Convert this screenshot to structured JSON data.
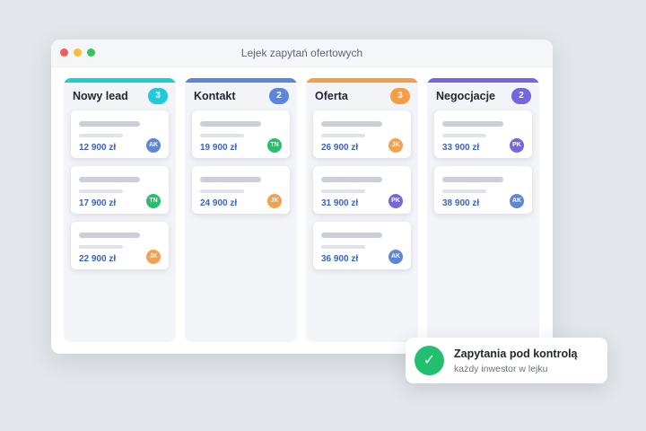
{
  "window": {
    "title": "Lejek zapytań ofertowych"
  },
  "colors": {
    "background": "#e3e7eb",
    "amount": "#3a63c4",
    "toast_check": "#22c06e"
  },
  "avatar_colors": {
    "AK": "#5b86d9",
    "TN": "#26bf6a",
    "JK": "#f5a04c",
    "PK": "#7667e0"
  },
  "columns": [
    {
      "title": "Nowy lead",
      "count": "3",
      "color": "#1fcbd9",
      "cards": [
        {
          "amount": "12 900 zł",
          "avatar": "AK"
        },
        {
          "amount": "17 900 zł",
          "avatar": "TN"
        },
        {
          "amount": "22 900 zł",
          "avatar": "JK"
        }
      ]
    },
    {
      "title": "Kontakt",
      "count": "2",
      "color": "#5b86e0",
      "cards": [
        {
          "amount": "19 900 zł",
          "avatar": "TN"
        },
        {
          "amount": "24 900 zł",
          "avatar": "JK"
        }
      ]
    },
    {
      "title": "Oferta",
      "count": "3",
      "color": "#f79d45",
      "cards": [
        {
          "amount": "26 900 zł",
          "avatar": "JK"
        },
        {
          "amount": "31 900 zł",
          "avatar": "PK"
        },
        {
          "amount": "36 900 zł",
          "avatar": "AK"
        }
      ]
    },
    {
      "title": "Negocjacje",
      "count": "2",
      "color": "#7266e3",
      "cards": [
        {
          "amount": "33 900 zł",
          "avatar": "PK"
        },
        {
          "amount": "38 900 zł",
          "avatar": "AK"
        }
      ]
    }
  ],
  "toast": {
    "title": "Zapytania pod kontrolą",
    "subtitle": "każdy inwestor w lejku",
    "icon": "check-icon",
    "icon_glyph": "✓"
  }
}
